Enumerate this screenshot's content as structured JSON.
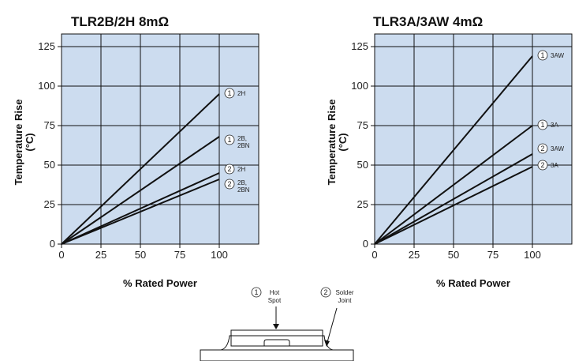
{
  "chart_data": [
    {
      "type": "line",
      "title": "TLR2B/2H 8mΩ",
      "xlabel": "% Rated Power",
      "ylabel": "Temperature Rise",
      "ylabel_unit": "(°C)",
      "xlim": [
        0,
        125
      ],
      "ylim": [
        0,
        133
      ],
      "xticks": [
        "0",
        "25",
        "50",
        "75",
        "100"
      ],
      "yticks": [
        "0",
        "25",
        "50",
        "75",
        "100",
        "125"
      ],
      "grid": true,
      "series": [
        {
          "name": "2H",
          "marker": "1",
          "x": [
            0,
            100
          ],
          "y": [
            0,
            95
          ]
        },
        {
          "name": "2B, 2BN",
          "marker": "1",
          "x": [
            0,
            100
          ],
          "y": [
            0,
            68
          ]
        },
        {
          "name": "2H",
          "marker": "2",
          "x": [
            0,
            100
          ],
          "y": [
            0,
            45
          ]
        },
        {
          "name": "2B, 2BN",
          "marker": "2",
          "x": [
            0,
            100
          ],
          "y": [
            0,
            41
          ]
        }
      ]
    },
    {
      "type": "line",
      "title": "TLR3A/3AW 4mΩ",
      "xlabel": "% Rated Power",
      "ylabel": "Temperature Rise",
      "ylabel_unit": "(°C)",
      "xlim": [
        0,
        125
      ],
      "ylim": [
        0,
        133
      ],
      "xticks": [
        "0",
        "25",
        "50",
        "75",
        "100"
      ],
      "yticks": [
        "0",
        "25",
        "50",
        "75",
        "100",
        "125"
      ],
      "grid": true,
      "series": [
        {
          "name": "3AW",
          "marker": "1",
          "x": [
            0,
            100
          ],
          "y": [
            0,
            119
          ]
        },
        {
          "name": "3A",
          "marker": "1",
          "x": [
            0,
            100
          ],
          "y": [
            0,
            75
          ]
        },
        {
          "name": "3AW",
          "marker": "2",
          "x": [
            0,
            100
          ],
          "y": [
            0,
            57
          ]
        },
        {
          "name": "3A",
          "marker": "2",
          "x": [
            0,
            100
          ],
          "y": [
            0,
            49
          ]
        }
      ]
    }
  ],
  "legend_diagram": {
    "hot_spot": {
      "marker": "1",
      "line1": "Hot",
      "line2": "Spot"
    },
    "solder_joint": {
      "marker": "2",
      "line1": "Solder",
      "line2": "Joint"
    }
  }
}
